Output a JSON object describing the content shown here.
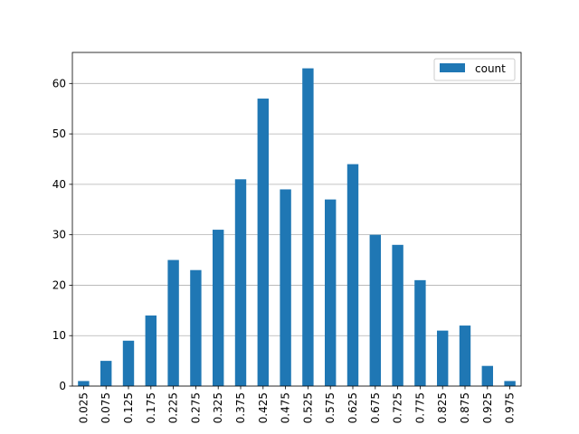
{
  "chart_data": {
    "type": "bar",
    "title": "",
    "xlabel": "",
    "ylabel": "",
    "categories": [
      "0.025",
      "0.075",
      "0.125",
      "0.175",
      "0.225",
      "0.275",
      "0.325",
      "0.375",
      "0.425",
      "0.475",
      "0.525",
      "0.575",
      "0.625",
      "0.675",
      "0.725",
      "0.775",
      "0.825",
      "0.875",
      "0.925",
      "0.975"
    ],
    "series": [
      {
        "name": "count",
        "values": [
          1,
          5,
          9,
          14,
          25,
          23,
          31,
          41,
          57,
          39,
          63,
          37,
          44,
          30,
          28,
          21,
          11,
          12,
          4,
          1
        ]
      }
    ],
    "ylim": [
      0,
      66.15
    ],
    "yticks": [
      "0",
      "10",
      "20",
      "30",
      "40",
      "50",
      "60"
    ],
    "grid": "y",
    "legend_position": "top-right",
    "colors": {
      "bar": "#1f77b4",
      "grid": "#b0b0b0",
      "axis": "#000000",
      "background": "#ffffff"
    }
  }
}
